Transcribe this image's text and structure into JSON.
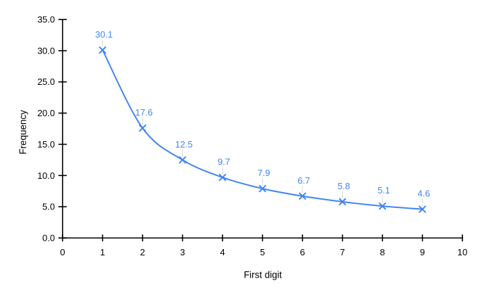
{
  "chart_data": {
    "type": "line",
    "title": "",
    "xlabel": "First digit",
    "ylabel": "Frequency",
    "x": [
      1,
      2,
      3,
      4,
      5,
      6,
      7,
      8,
      9
    ],
    "series": [
      {
        "name": "Frequency",
        "values": [
          30.1,
          17.6,
          12.5,
          9.7,
          7.9,
          6.7,
          5.8,
          5.1,
          4.6
        ],
        "point_labels": [
          "30.1",
          "17.6",
          "12.5",
          "9.7",
          "7.9",
          "6.7",
          "5.8",
          "5.1",
          "4.6"
        ]
      }
    ],
    "xlim": [
      0,
      10
    ],
    "ylim": [
      0,
      35
    ],
    "x_ticks": [
      "0",
      "1",
      "2",
      "3",
      "4",
      "5",
      "6",
      "7",
      "8",
      "9",
      "10"
    ],
    "y_ticks": [
      "0.0",
      "5.0",
      "10.0",
      "15.0",
      "20.0",
      "25.0",
      "30.0",
      "35.0"
    ],
    "grid": false,
    "legend": "none",
    "line_style": "smooth",
    "marker": "x",
    "colors": {
      "series": "#4285f4",
      "data_label": "#4285f4",
      "leader_line": "#dadada",
      "axis": "#000000",
      "tick_text": "#000000",
      "background": "#ffffff"
    }
  }
}
